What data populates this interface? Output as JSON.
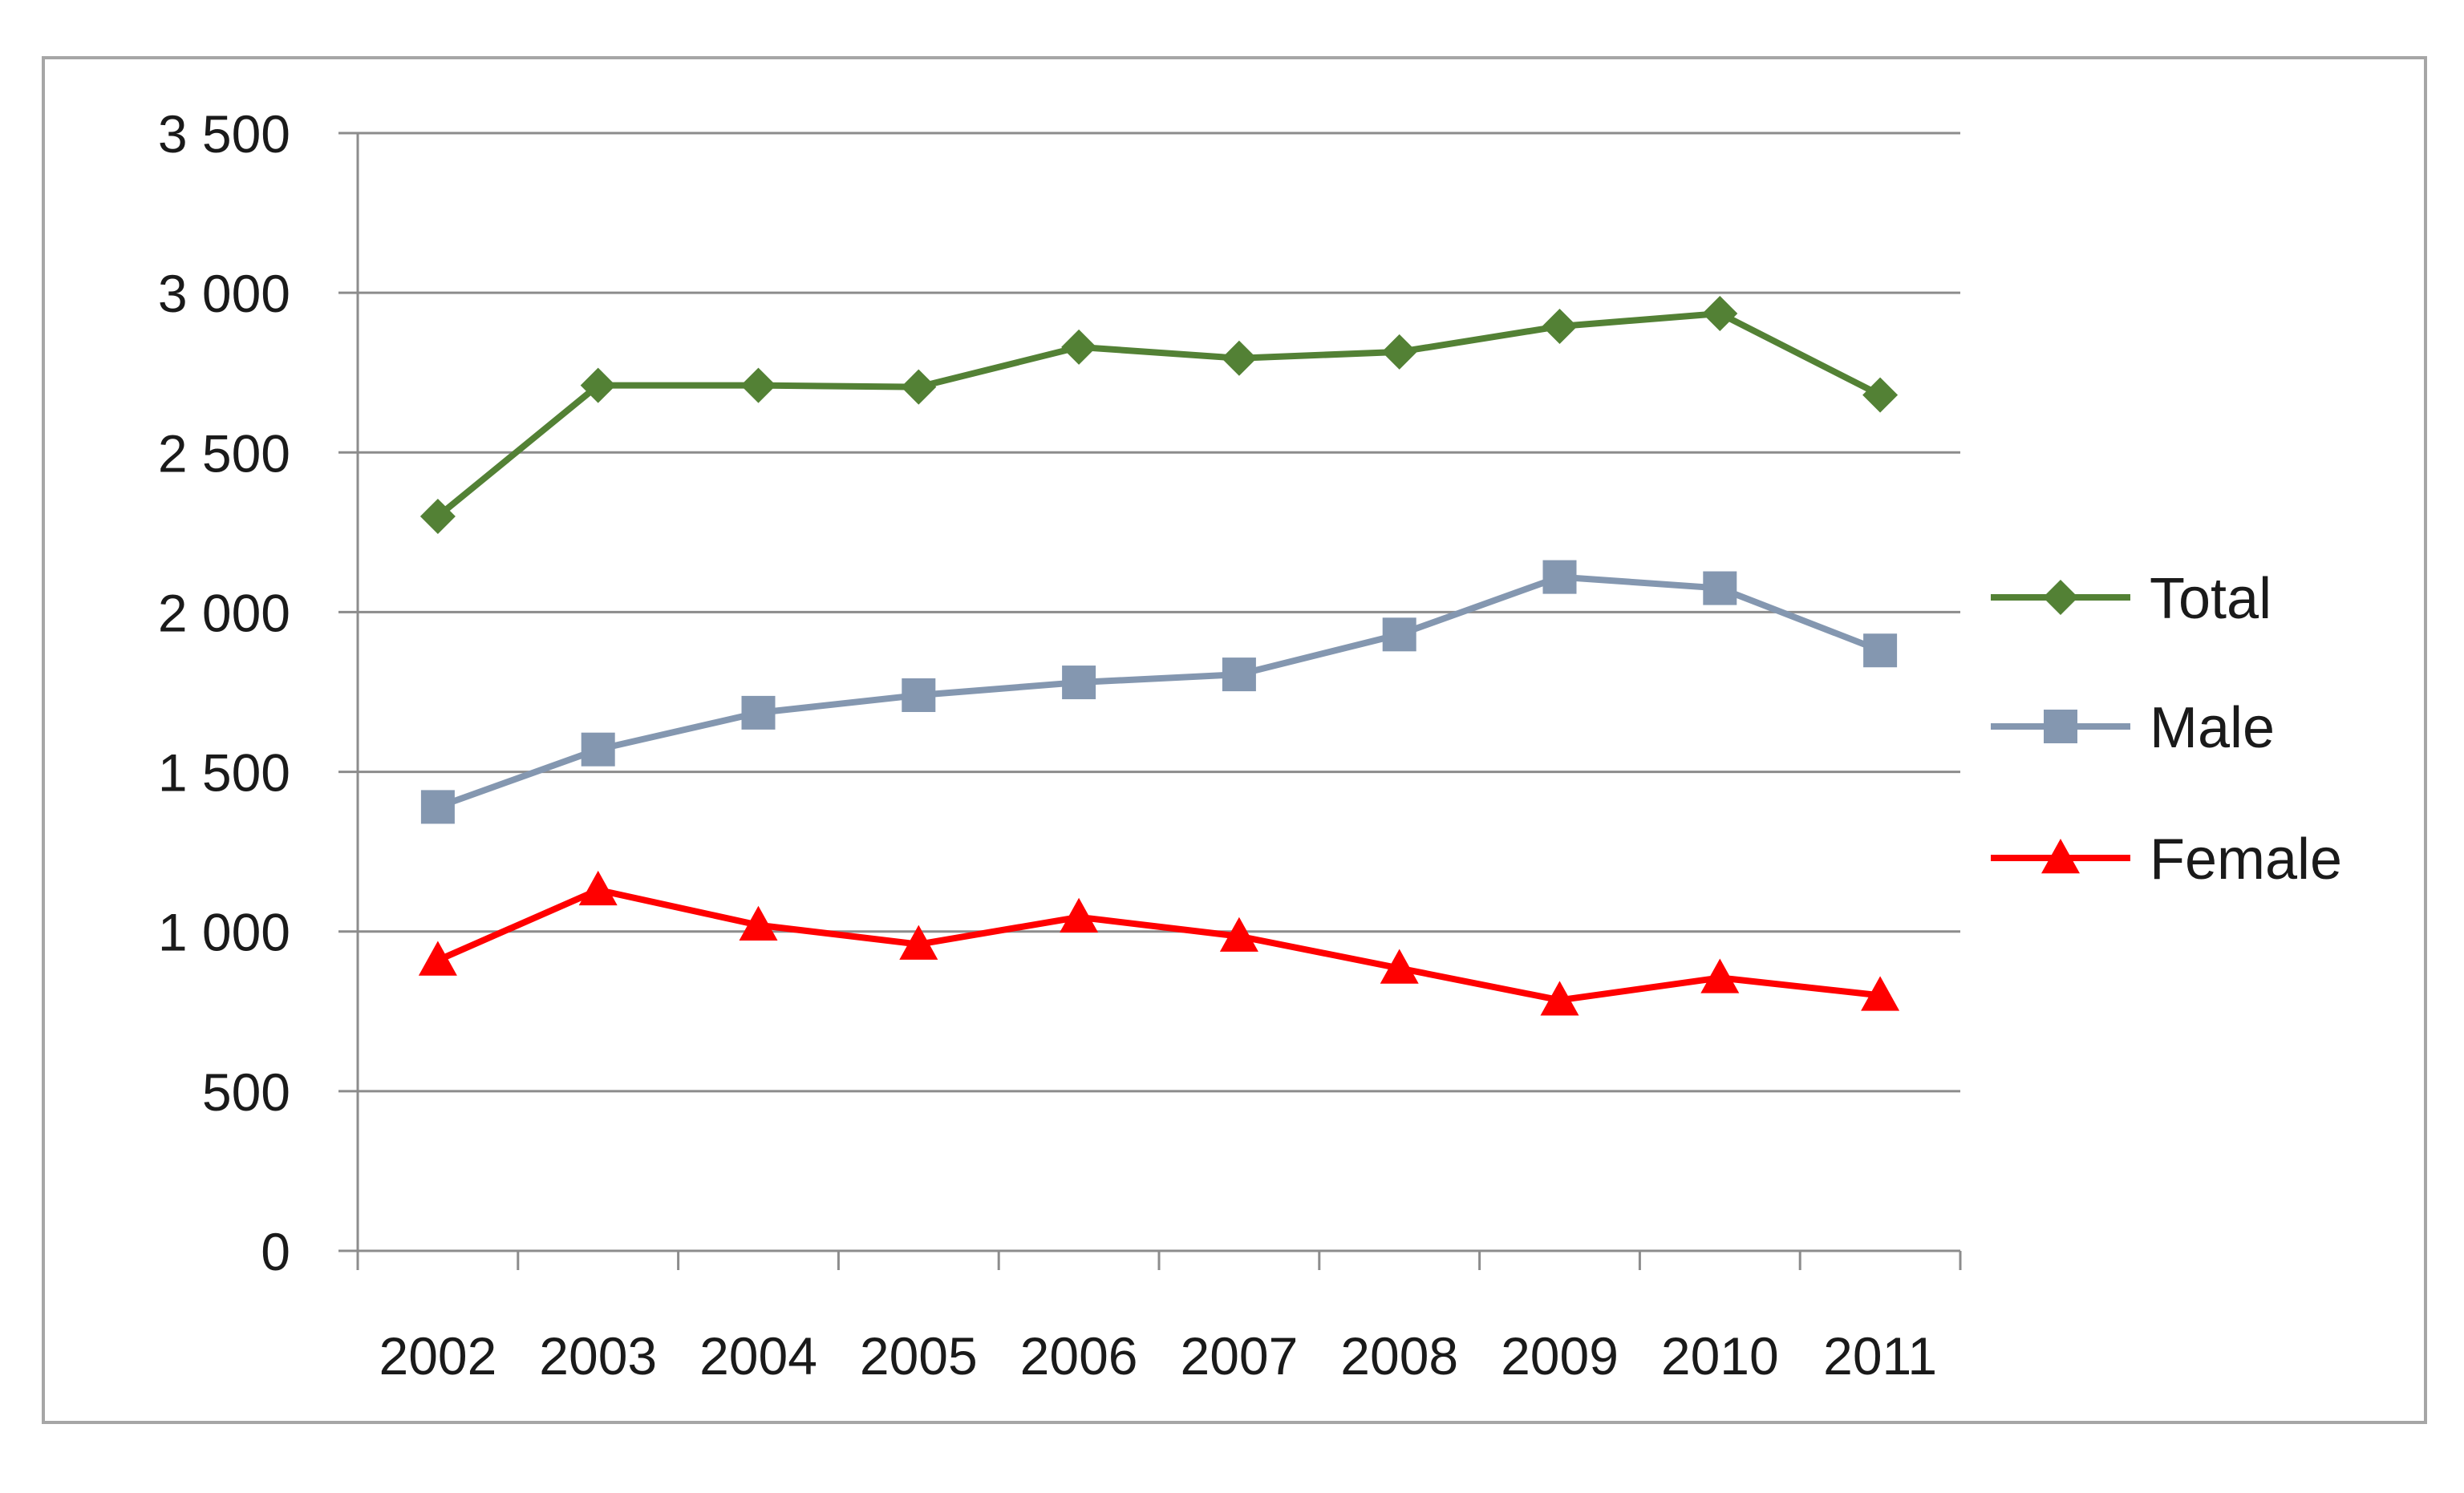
{
  "chart_data": {
    "type": "line",
    "categories": [
      "2002",
      "2003",
      "2004",
      "2005",
      "2006",
      "2007",
      "2008",
      "2009",
      "2010",
      "2011"
    ],
    "series": [
      {
        "name": "Total",
        "values": [
          2300,
          2710,
          2710,
          2705,
          2830,
          2795,
          2815,
          2895,
          2935,
          2680
        ],
        "color": "#538135",
        "marker": "diamond"
      },
      {
        "name": "Male",
        "values": [
          1390,
          1570,
          1685,
          1740,
          1780,
          1805,
          1930,
          2110,
          2075,
          1880
        ],
        "color": "#8497B0",
        "marker": "square"
      },
      {
        "name": "Female",
        "values": [
          910,
          1130,
          1020,
          960,
          1045,
          985,
          885,
          785,
          855,
          800
        ],
        "color": "#FF0000",
        "marker": "triangle"
      }
    ],
    "y_ticks": [
      "0",
      "500",
      "1 000",
      "1 500",
      "2 000",
      "2 500",
      "3 000",
      "3 500"
    ],
    "ylim": [
      0,
      3500
    ],
    "grid": true,
    "legend_position": "right",
    "title": "",
    "xlabel": "",
    "ylabel": ""
  }
}
